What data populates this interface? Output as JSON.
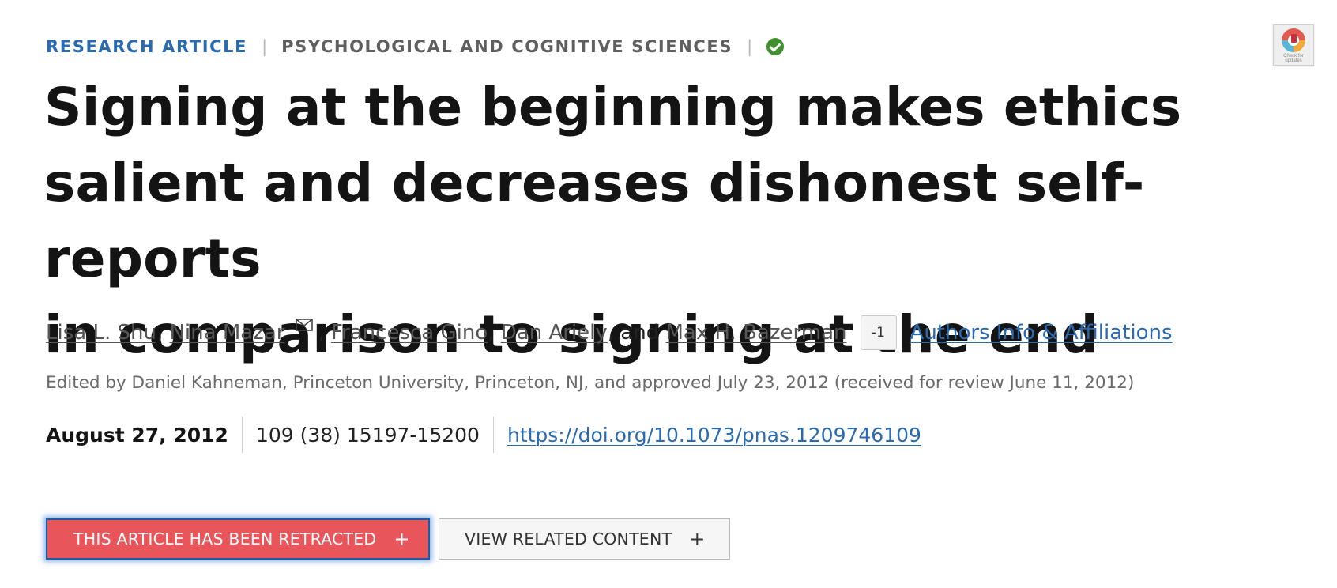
{
  "article": {
    "type_label": "RESEARCH ARTICLE",
    "subject_label": "PSYCHOLOGICAL AND COGNITIVE SCIENCES",
    "separator": "|",
    "title_lines": [
      "Signing at the beginning makes ethics",
      "salient and decreases dishonest self-reports",
      "in comparison to signing at the end"
    ]
  },
  "updates_badge": {
    "text": "Check for updates",
    "icon": "crossmark-icon"
  },
  "authors": {
    "list": [
      "Lisa L. Shu",
      "Nina Mazar",
      "Francesca Gino",
      "Dan Ariely",
      "Max H. Bazerman"
    ],
    "comma": ",",
    "and_text": ", and",
    "expand_badge": "-1",
    "affiliations_link": "Authors Info & Affiliations",
    "mail_icon": "envelope-icon"
  },
  "editor_line": "Edited by Daniel Kahneman, Princeton University, Princeton, NJ, and approved July 23, 2012 (received for review June 11, 2012)",
  "meta": {
    "date": "August 27, 2012",
    "citation": "109 (38) 15197-15200",
    "doi": "https://doi.org/10.1073/pnas.1209746109"
  },
  "buttons": {
    "retracted": "THIS ARTICLE HAS BEEN RETRACTED",
    "related": "VIEW RELATED CONTENT",
    "plus": "+"
  },
  "colors": {
    "accent_blue": "#2a6ab1",
    "retracted_red": "#e8555a",
    "check_green": "#3f8f2f"
  }
}
